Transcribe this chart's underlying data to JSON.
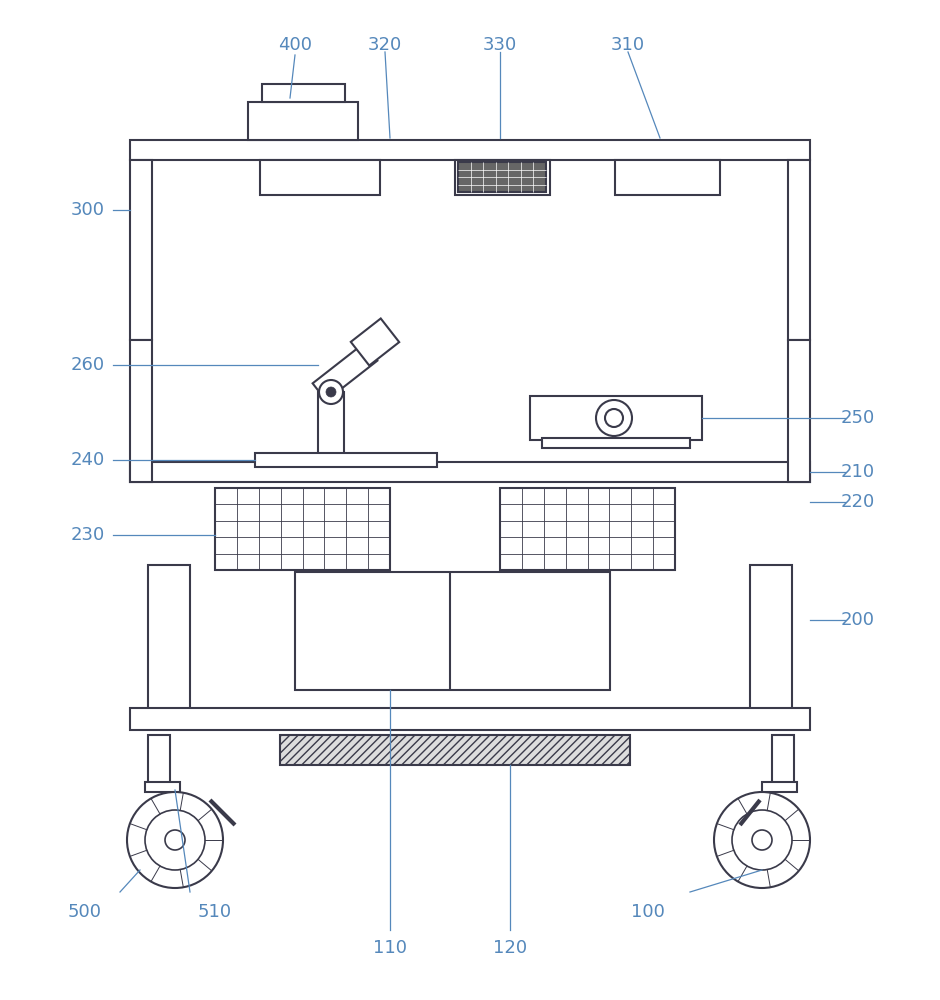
{
  "bg_color": "#ffffff",
  "line_color": "#3a3a4a",
  "label_color": "#5588bb",
  "fig_width": 9.4,
  "fig_height": 10.0
}
